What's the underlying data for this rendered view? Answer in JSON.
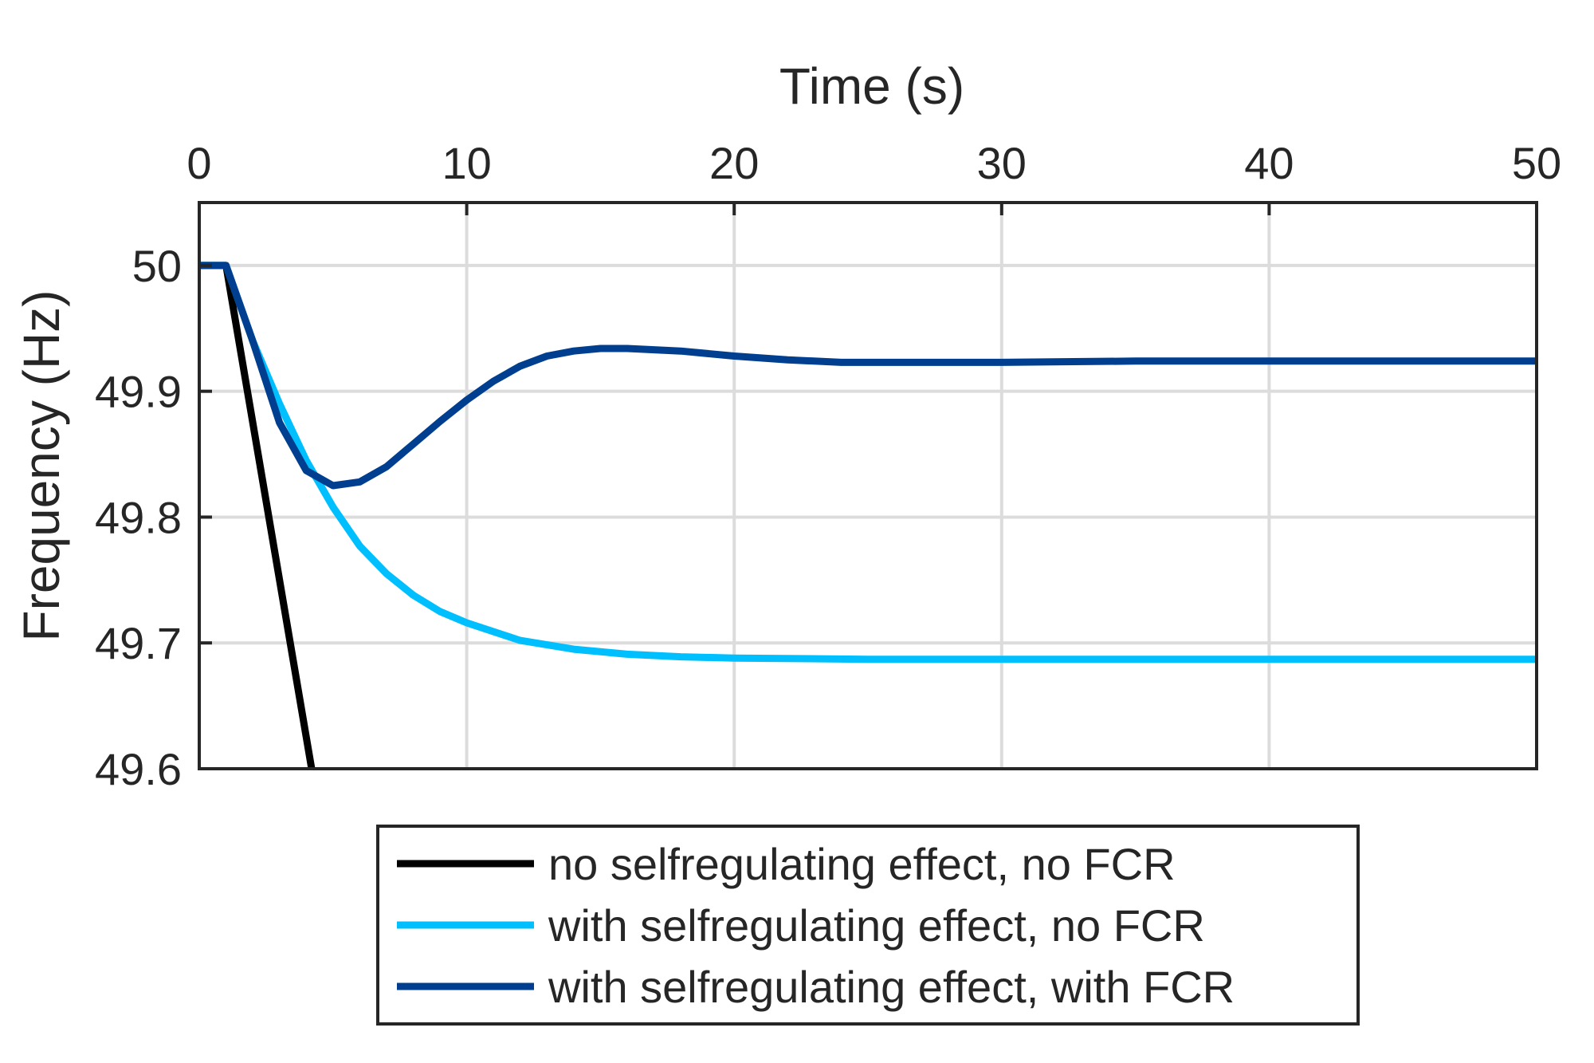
{
  "chart_data": {
    "type": "line",
    "xlabel": "Time (s)",
    "ylabel": "Frequency (Hz)",
    "xaxis_location": "top",
    "xlim": [
      0,
      50
    ],
    "ylim": [
      49.6,
      50.05
    ],
    "xticks": [
      0,
      10,
      20,
      30,
      40,
      50
    ],
    "xtick_labels": [
      "0",
      "10",
      "20",
      "30",
      "40",
      "50"
    ],
    "yticks": [
      49.6,
      49.7,
      49.8,
      49.9,
      50
    ],
    "ytick_labels": [
      "49.6",
      "49.7",
      "49.8",
      "49.9",
      "50"
    ],
    "grid": true,
    "legend_position": "bottom-outside",
    "series": [
      {
        "name": "no selfregulating effect, no FCR",
        "color": "#000000",
        "x": [
          0,
          1,
          4.2
        ],
        "y": [
          50,
          50,
          49.6
        ]
      },
      {
        "name": "with selfregulating effect, no FCR",
        "color": "#00bfff",
        "x": [
          0,
          1,
          2,
          3,
          4,
          5,
          6,
          7,
          8,
          9,
          10,
          12,
          14,
          16,
          18,
          20,
          25,
          30,
          35,
          40,
          45,
          50
        ],
        "y": [
          50,
          50,
          49.94,
          49.89,
          49.845,
          49.808,
          49.777,
          49.755,
          49.738,
          49.725,
          49.716,
          49.702,
          49.695,
          49.691,
          49.689,
          49.688,
          49.687,
          49.687,
          49.687,
          49.687,
          49.687,
          49.687
        ]
      },
      {
        "name": "with selfregulating effect, with FCR",
        "color": "#003f8f",
        "x": [
          0,
          1,
          2,
          3,
          4,
          5,
          6,
          7,
          8,
          9,
          10,
          11,
          12,
          13,
          14,
          15,
          16,
          18,
          20,
          22,
          24,
          26,
          28,
          30,
          35,
          40,
          45,
          50
        ],
        "y": [
          50,
          50,
          49.94,
          49.875,
          49.837,
          49.825,
          49.828,
          49.84,
          49.858,
          49.876,
          49.893,
          49.908,
          49.92,
          49.928,
          49.932,
          49.934,
          49.934,
          49.932,
          49.928,
          49.925,
          49.923,
          49.923,
          49.923,
          49.923,
          49.924,
          49.924,
          49.924,
          49.924
        ]
      }
    ]
  }
}
